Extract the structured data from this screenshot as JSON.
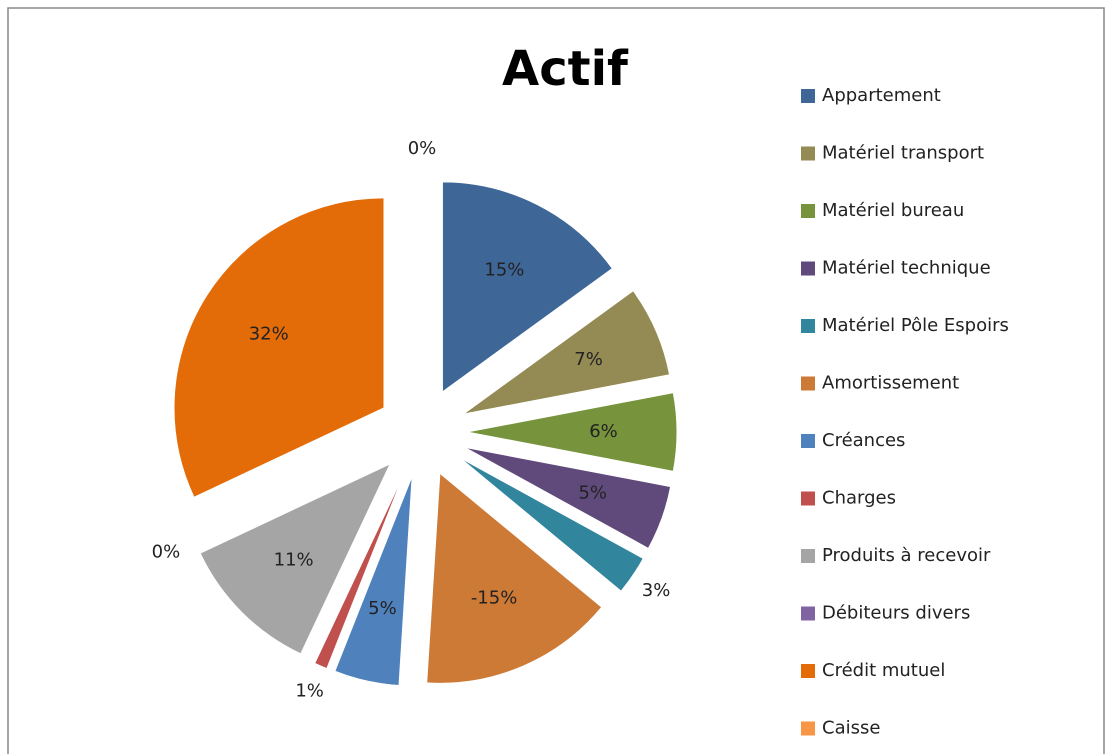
{
  "chart_data": {
    "type": "pie",
    "title": "Actif",
    "categories": [
      "Appartement",
      "Matériel transport",
      "Matériel bureau",
      "Matériel technique",
      "Matériel Pôle Espoirs",
      "Amortissement",
      "Créances",
      "Charges",
      "Produits à recevoir",
      "Débiteurs divers",
      "Crédit mutuel",
      "Caisse"
    ],
    "values": [
      15,
      7,
      6,
      5,
      3,
      -15,
      5,
      1,
      11,
      0,
      32,
      0
    ],
    "value_labels": [
      "15%",
      "7%",
      "6%",
      "5%",
      "3%",
      "-15%",
      "5%",
      "1%",
      "11%",
      "0%",
      "32%",
      "0%"
    ],
    "colors": [
      "#3e6697",
      "#948a54",
      "#77933c",
      "#604a7b",
      "#31859c",
      "#cd7a37",
      "#4f81bd",
      "#c0504d",
      "#a5a5a5",
      "#8064a2",
      "#e36c09",
      "#f79646"
    ],
    "legend": "right"
  }
}
